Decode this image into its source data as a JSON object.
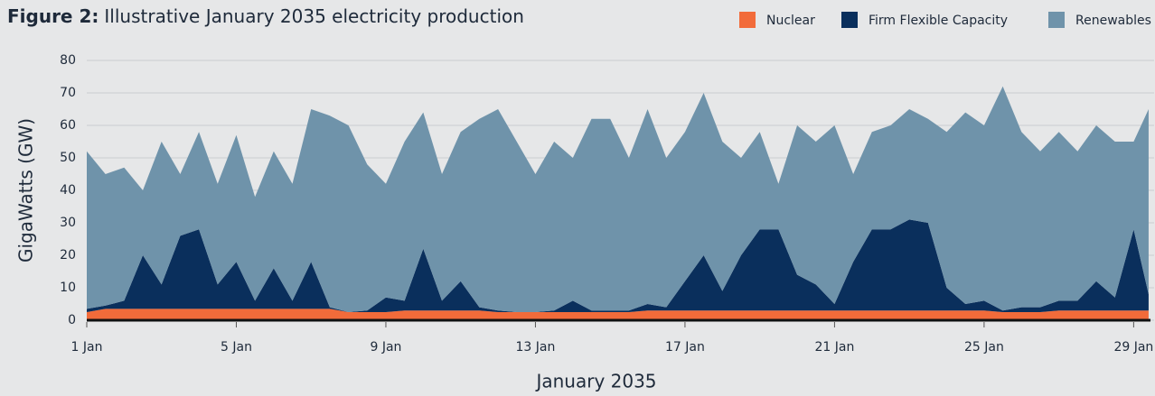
{
  "chart_data": {
    "type": "stacked_area",
    "figure_label": "Figure 2:",
    "title": "Illustrative January 2035 electricity production",
    "xlabel": "January 2035",
    "ylabel": "GigaWatts (GW)",
    "x": [
      1,
      1.5,
      2,
      2.5,
      3,
      3.5,
      4,
      4.5,
      5,
      5.5,
      6,
      6.5,
      7,
      7.5,
      8,
      8.5,
      9,
      9.5,
      10,
      10.5,
      11,
      11.5,
      12,
      12.5,
      13,
      13.5,
      14,
      14.5,
      15,
      15.5,
      16,
      16.5,
      17,
      17.5,
      18,
      18.5,
      19,
      19.5,
      20,
      20.5,
      21,
      21.5,
      22,
      22.5,
      23,
      23.5,
      24,
      24.5,
      25,
      25.5,
      26,
      26.5,
      27,
      27.5,
      28,
      28.5,
      29,
      29.4
    ],
    "series": [
      {
        "name": "Nuclear",
        "color": "#f26b3a",
        "values": [
          2.5,
          3.5,
          3.5,
          3.5,
          3.5,
          3.5,
          3.5,
          3.5,
          3.5,
          3.5,
          3.5,
          3.5,
          3.5,
          3.5,
          2.5,
          2.5,
          2.5,
          3,
          3,
          3,
          3,
          3,
          2.5,
          2.5,
          2.5,
          2.5,
          2.5,
          2.5,
          2.5,
          2.5,
          3,
          3,
          3,
          3,
          3,
          3,
          3,
          3,
          3,
          3,
          3,
          3,
          3,
          3,
          3,
          3,
          3,
          3,
          3,
          2.5,
          2.5,
          2.5,
          3,
          3,
          3,
          3,
          3,
          3
        ]
      },
      {
        "name": "Firm Flexible Capacity",
        "color": "#0a2f5c",
        "values": [
          1,
          1,
          2.5,
          16.5,
          7.5,
          22.5,
          24.5,
          7.5,
          14.5,
          2.5,
          12.5,
          2.5,
          14.5,
          0.5,
          0,
          0.5,
          4.5,
          3,
          19,
          3,
          9,
          1,
          0.5,
          0,
          0,
          0.5,
          3.5,
          0.5,
          0.5,
          0.5,
          2,
          1,
          9,
          17,
          6,
          17,
          25,
          25,
          11,
          8,
          2,
          15,
          25,
          25,
          28,
          27,
          7,
          2,
          3,
          0.5,
          1.5,
          1.5,
          3,
          3,
          9,
          4,
          25,
          5
        ]
      },
      {
        "name": "Renewables",
        "color": "#6f93aa",
        "values": [
          48.5,
          40.5,
          41,
          20,
          44,
          19,
          30,
          31,
          39,
          32,
          36,
          36,
          47,
          59,
          57.5,
          45,
          35,
          49,
          42,
          39,
          46,
          58,
          62,
          52.5,
          42.5,
          52,
          44,
          59,
          59,
          47,
          60,
          46,
          46,
          50,
          46,
          30,
          30,
          14,
          46,
          44,
          55,
          27,
          30,
          32,
          34,
          32,
          48,
          59,
          54,
          69,
          54,
          48,
          52,
          46,
          48,
          48,
          27,
          57
        ]
      }
    ],
    "xlim": [
      1,
      29.45
    ],
    "xticks": [
      {
        "value": 1,
        "label": "1 Jan"
      },
      {
        "value": 5,
        "label": "5 Jan"
      },
      {
        "value": 9,
        "label": "9 Jan"
      },
      {
        "value": 13,
        "label": "13 Jan"
      },
      {
        "value": 17,
        "label": "17 Jan"
      },
      {
        "value": 21,
        "label": "21 Jan"
      },
      {
        "value": 25,
        "label": "25 Jan"
      },
      {
        "value": 29,
        "label": "29 Jan"
      }
    ],
    "ylim": [
      0,
      80
    ],
    "yticks": [
      0,
      10,
      20,
      30,
      40,
      50,
      60,
      70,
      80
    ],
    "grid": true,
    "legend": "top-right"
  }
}
